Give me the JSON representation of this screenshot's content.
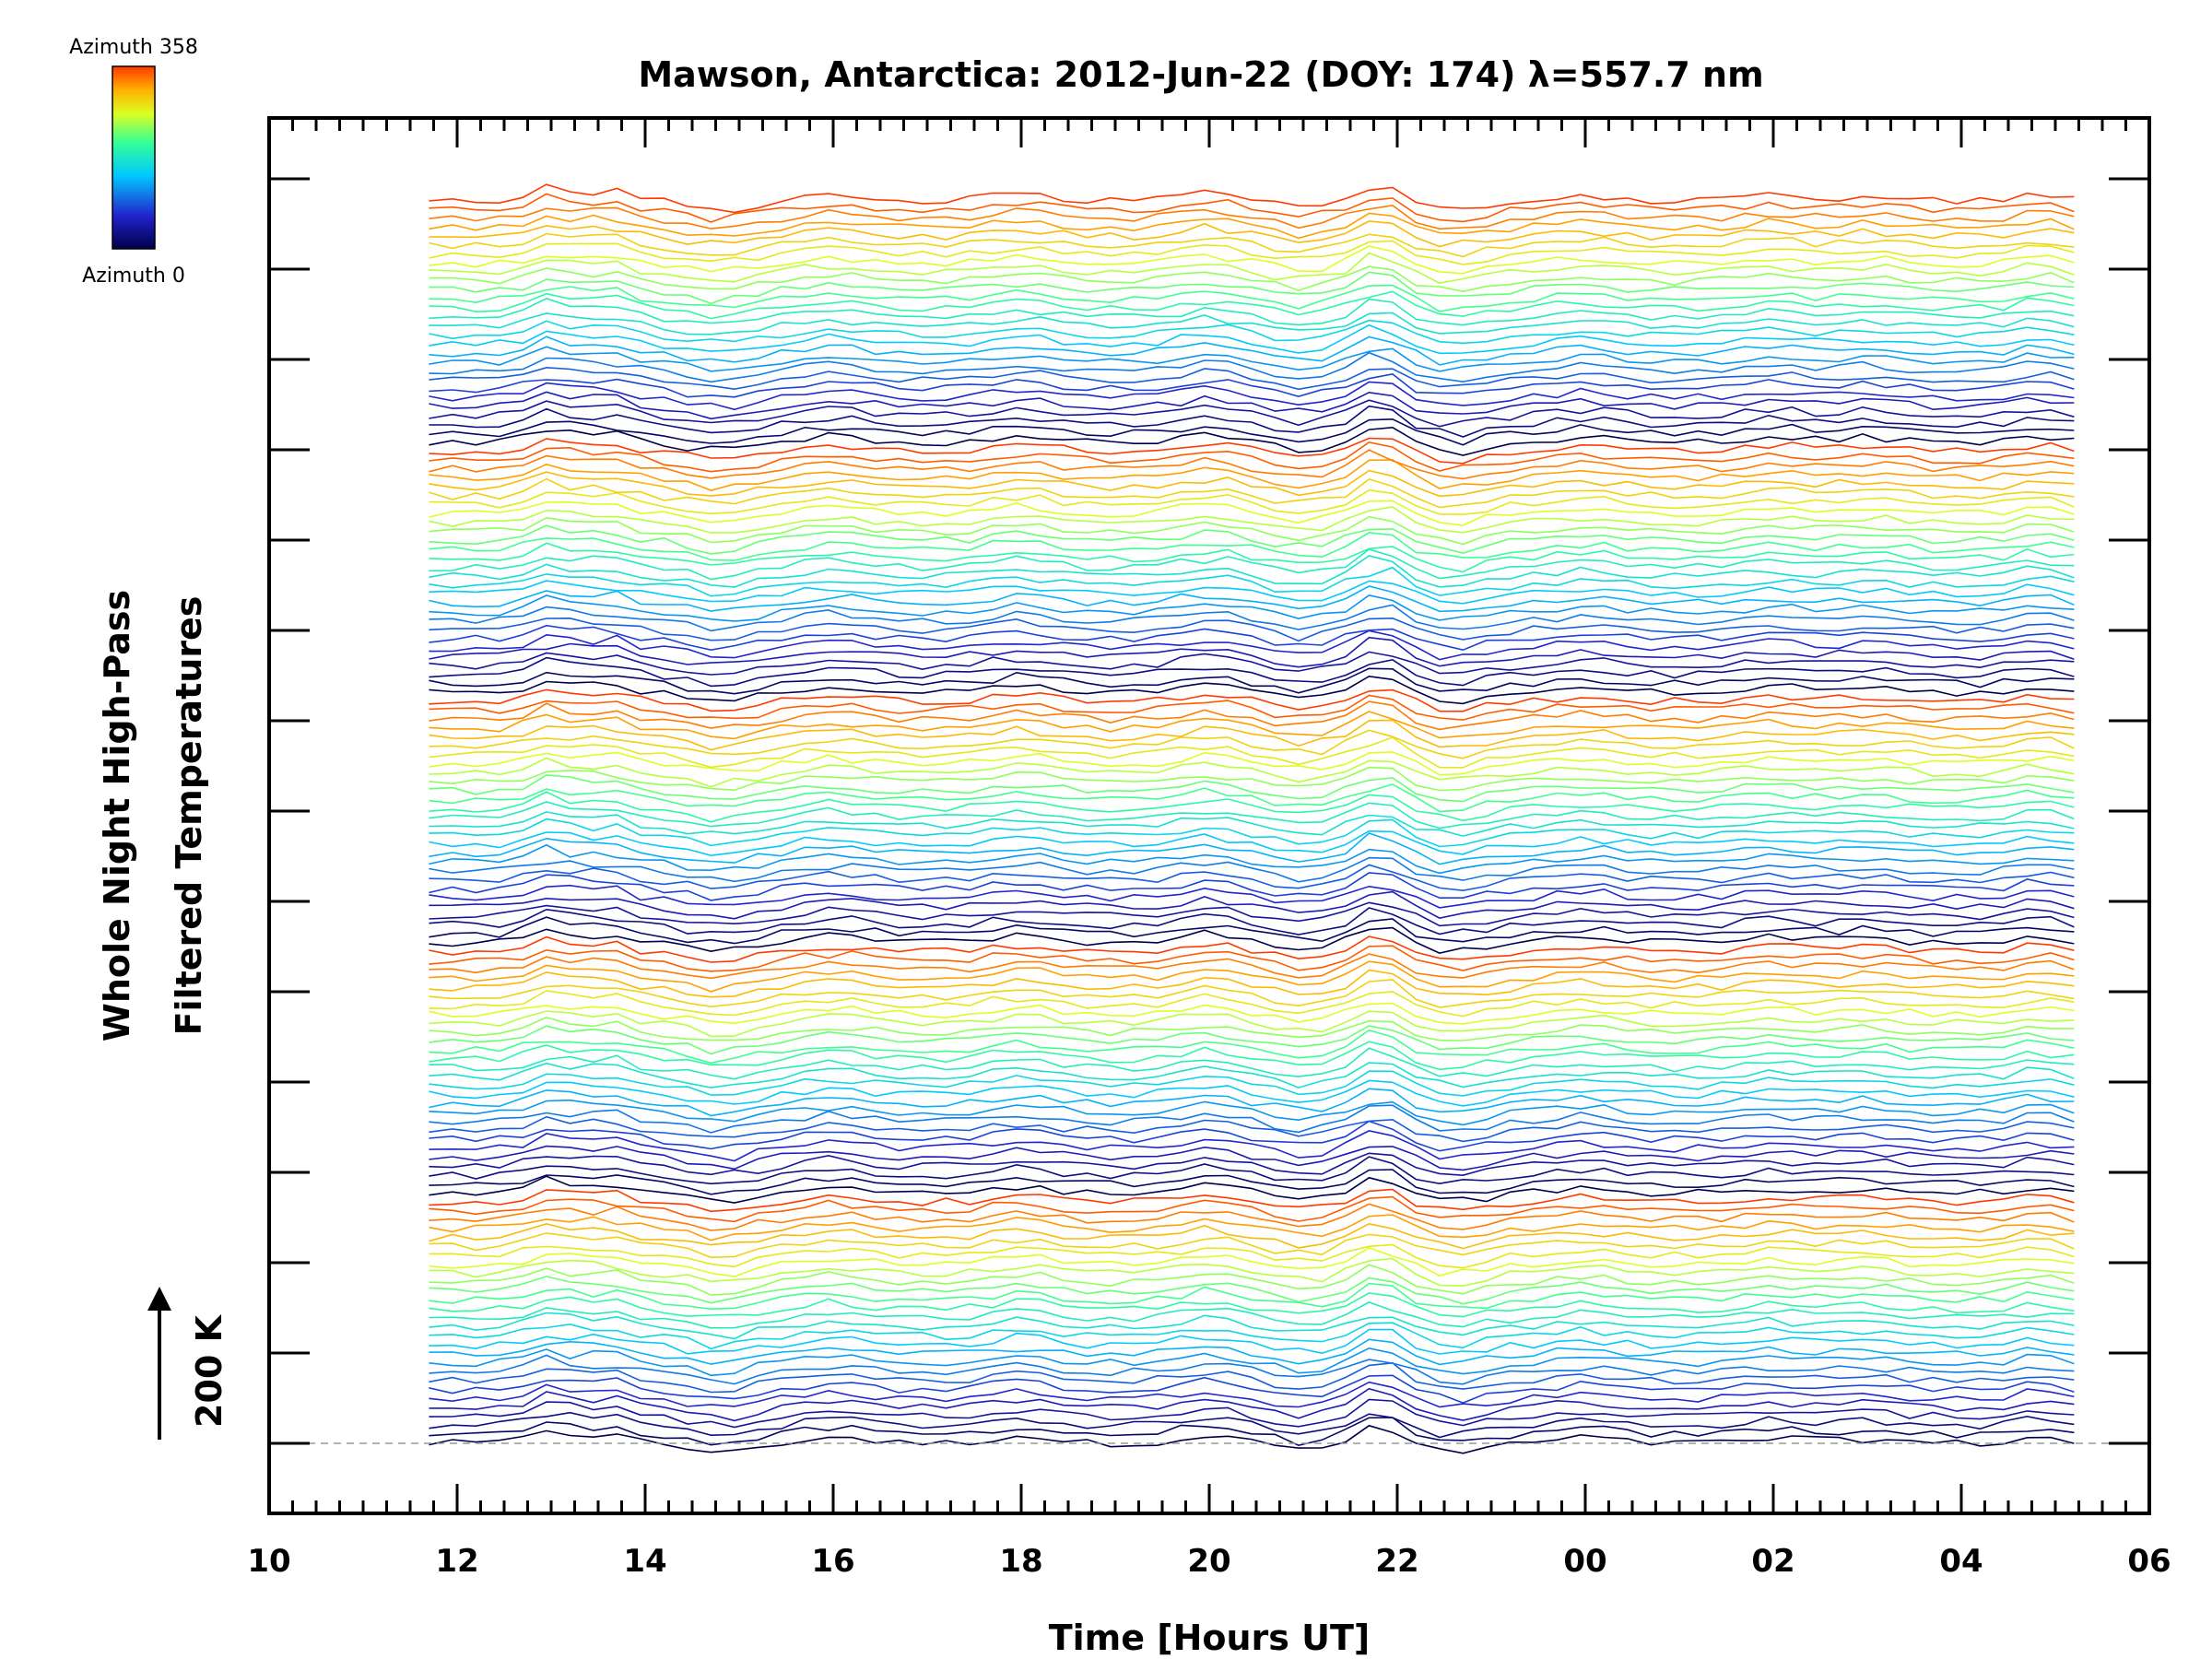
{
  "chart_data": {
    "type": "line",
    "title": "Mawson, Antarctica: 2012-Jun-22 (DOY: 174) λ=557.7 nm",
    "xlabel": "Time [Hours UT]",
    "ylabel_line1": "Whole Night High-Pass",
    "ylabel_line2": "Filtered Temperatures",
    "x_range_hours": [
      10,
      30
    ],
    "x_tick_labels": [
      "10",
      "12",
      "14",
      "16",
      "18",
      "20",
      "22",
      "00",
      "02",
      "04",
      "06"
    ],
    "data_x_range_hours": [
      11.7,
      29.2
    ],
    "scale_bar_label": "200 K",
    "colorbar": {
      "top_label": "Azimuth 358",
      "bottom_label": "Azimuth 0",
      "colormap": "rainbow",
      "colors": [
        "#00004a",
        "#2222cc",
        "#00c8ff",
        "#33ff99",
        "#dcff22",
        "#ffb000",
        "#ff3a00"
      ]
    },
    "grid": false,
    "baseline_dashed": true,
    "series_description": "Stacked high-pass filtered temperature traces, one per azimuth, coloured by azimuth",
    "num_traces": 140
  }
}
